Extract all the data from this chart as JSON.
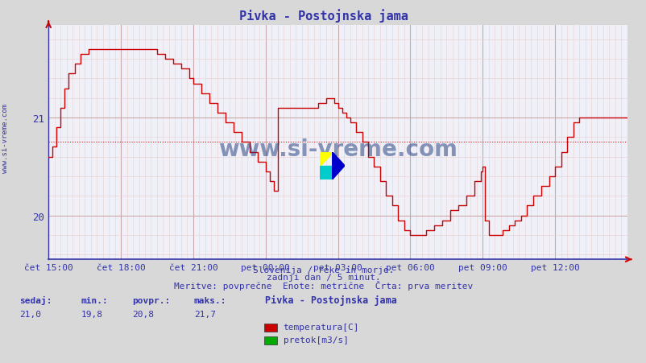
{
  "title": "Pivka - Postojnska jama",
  "bg_color": "#d8d8d8",
  "plot_bg_color": "#f0f0f8",
  "grid_color_v": "#d0b8b8",
  "grid_color_h": "#d0b8b8",
  "line_color": "#cc0000",
  "avg_line_color": "#cc0000",
  "avg_line_value": 20.75,
  "y_min": 19.55,
  "y_max": 21.95,
  "y_ticks": [
    20,
    21
  ],
  "x_labels": [
    "čet 15:00",
    "čet 18:00",
    "čet 21:00",
    "pet 00:00",
    "pet 03:00",
    "pet 06:00",
    "pet 09:00",
    "pet 12:00"
  ],
  "x_tick_positions": [
    0,
    36,
    72,
    108,
    144,
    180,
    216,
    252
  ],
  "total_points": 289,
  "subtitle1": "Slovenija / reke in morje.",
  "subtitle2": "zadnji dan / 5 minut.",
  "subtitle3": "Meritve: povprečne  Enote: metrične  Črta: prva meritev",
  "legend_title": "Pivka - Postojnska jama",
  "legend_items": [
    {
      "label": "temperatura[C]",
      "color": "#cc0000"
    },
    {
      "label": "pretok[m3/s]",
      "color": "#00aa00"
    }
  ],
  "stats": {
    "sedaj": "21,0",
    "min": "19,8",
    "povpr": "20,8",
    "maks": "21,7"
  },
  "watermark": "www.si-vreme.com",
  "watermark_color": "#1a3a7a",
  "sidebar_text": "www.si-vreme.com"
}
